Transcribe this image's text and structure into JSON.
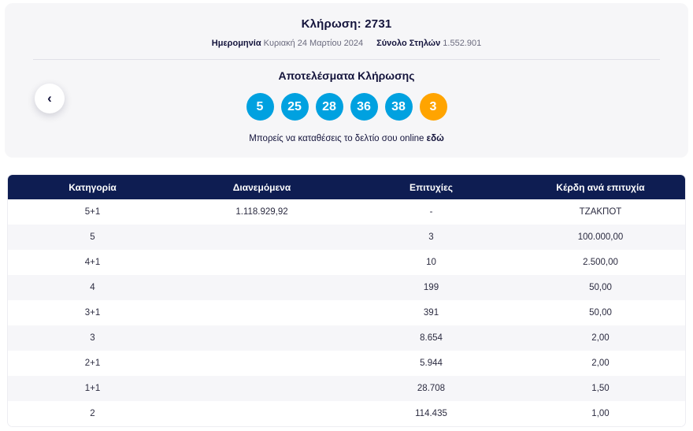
{
  "colors": {
    "ball_blue": "#00a1e0",
    "ball_orange": "#ffa400",
    "table_header_bg": "#0e1d52"
  },
  "header": {
    "draw_label": "Κλήρωση:",
    "draw_number": "2731",
    "date_label": "Ημερομηνία",
    "date_value": "Κυριακή 24 Μαρτίου 2024",
    "columns_label": "Σύνολο Στηλών",
    "columns_value": "1.552.901",
    "results_title": "Αποτελέσματα Κλήρωσης",
    "numbers": [
      "5",
      "25",
      "28",
      "36",
      "38"
    ],
    "joker": "3",
    "cta_text": "Μπορείς να καταθέσεις το δελτίο σου online",
    "cta_link": "εδώ",
    "prev_icon": "‹"
  },
  "table": {
    "headers": [
      "Κατηγορία",
      "Διανεμόμενα",
      "Επιτυχίες",
      "Κέρδη ανά επιτυχία"
    ],
    "rows": [
      {
        "category": "5+1",
        "distributed": "1.118.929,92",
        "winners": "-",
        "prize": "ΤΖΑΚΠΟΤ"
      },
      {
        "category": "5",
        "distributed": "",
        "winners": "3",
        "prize": "100.000,00"
      },
      {
        "category": "4+1",
        "distributed": "",
        "winners": "10",
        "prize": "2.500,00"
      },
      {
        "category": "4",
        "distributed": "",
        "winners": "199",
        "prize": "50,00"
      },
      {
        "category": "3+1",
        "distributed": "",
        "winners": "391",
        "prize": "50,00"
      },
      {
        "category": "3",
        "distributed": "",
        "winners": "8.654",
        "prize": "2,00"
      },
      {
        "category": "2+1",
        "distributed": "",
        "winners": "5.944",
        "prize": "2,00"
      },
      {
        "category": "1+1",
        "distributed": "",
        "winners": "28.708",
        "prize": "1,50"
      },
      {
        "category": "2",
        "distributed": "",
        "winners": "114.435",
        "prize": "1,00"
      }
    ]
  }
}
